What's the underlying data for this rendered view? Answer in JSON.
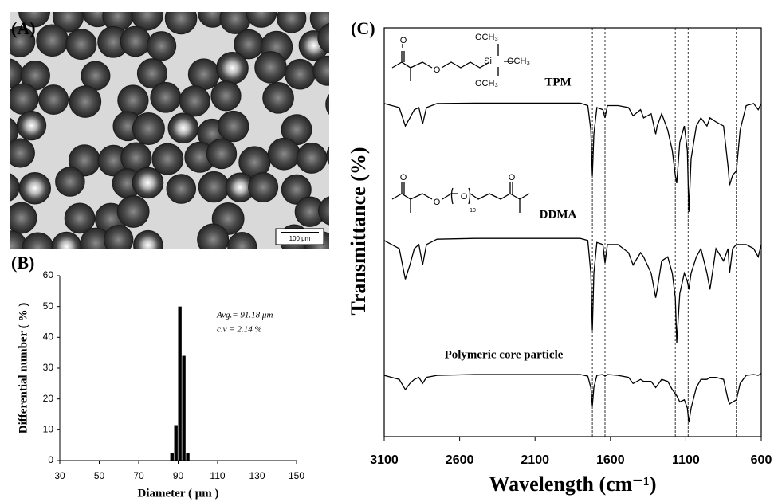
{
  "micrograph": {
    "panel_label": "(A)",
    "scale_bar_label": "100 μm"
  },
  "chart_data": [
    {
      "type": "histogram",
      "panel_label": "(B)",
      "x_label": "Diameter ( μm )",
      "y_label": "Differential number ( % )",
      "annotations": [
        "Avg.= 91.18 μm",
        "c.v = 2.14 %"
      ],
      "bins": [
        86,
        88,
        90,
        92,
        94,
        96
      ],
      "values": [
        2.5,
        11.5,
        50,
        34,
        2.5
      ],
      "color": "#000000",
      "xlim": [
        30,
        150
      ],
      "xticks": [
        30,
        50,
        70,
        90,
        110,
        130,
        150
      ],
      "ylim": [
        0,
        60
      ],
      "yticks": [
        0,
        10,
        20,
        30,
        40,
        50,
        60
      ]
    },
    {
      "type": "line",
      "panel_label": "(C)",
      "x_label": "Wavelength (cm⁻¹)",
      "y_label": "Transmittance (%)",
      "structure_labels": [
        "OCH₃",
        "OCH₃",
        "OCH₃",
        "Si",
        "O",
        "O",
        "O",
        "O",
        "O",
        "O",
        "10"
      ],
      "x": [
        3100,
        3000,
        2960,
        2930,
        2900,
        2870,
        2845,
        2820,
        2750,
        2500,
        1800,
        1750,
        1730,
        1720,
        1710,
        1690,
        1650,
        1636,
        1620,
        1550,
        1480,
        1450,
        1400,
        1380,
        1330,
        1300,
        1290,
        1260,
        1220,
        1190,
        1170,
        1160,
        1140,
        1110,
        1090,
        1080,
        1065,
        1030,
        1000,
        960,
        940,
        900,
        850,
        820,
        810,
        790,
        765,
        740,
        700,
        650,
        620,
        600
      ],
      "series": [
        {
          "name": "TPM",
          "color": "#000000",
          "values": [
            81.5,
            80.5,
            76,
            78,
            80,
            80.5,
            76.5,
            80.5,
            81.5,
            81.6,
            81.6,
            81,
            75,
            63.8,
            74,
            80.5,
            80,
            78,
            81,
            81,
            80.5,
            78.5,
            80,
            78,
            79,
            74,
            76,
            79,
            75,
            70,
            64,
            62,
            72,
            76,
            70,
            55,
            68,
            76,
            78,
            76,
            78,
            77,
            76,
            66,
            61.5,
            64,
            65,
            75,
            81,
            81.5,
            80,
            81.5
          ]
        },
        {
          "name": "DDMA",
          "color": "#000000",
          "values": [
            48,
            46,
            38.5,
            42,
            46,
            47,
            42,
            47,
            48.3,
            48.5,
            48.5,
            48,
            40,
            26,
            40,
            47.5,
            47,
            42.5,
            47,
            47,
            45,
            42,
            45,
            44,
            40,
            34,
            36,
            43,
            44,
            40,
            34,
            23,
            35,
            40,
            38,
            36,
            40,
            44,
            46,
            40,
            36,
            46,
            43,
            46,
            40,
            46,
            47,
            47,
            47,
            46,
            44,
            47
          ]
        },
        {
          "name": "Polymeric core particle",
          "color": "#000000",
          "values": [
            15,
            14,
            11.5,
            13,
            14,
            14.5,
            13,
            14.5,
            15,
            15.2,
            15.2,
            14.8,
            12,
            7.5,
            12,
            15,
            15.2,
            14.8,
            15.2,
            15,
            14.5,
            13,
            14,
            13.5,
            13.5,
            12,
            12.5,
            14,
            13.5,
            11.5,
            10.5,
            10,
            8.5,
            9,
            7,
            3.5,
            7,
            12,
            14,
            14,
            14.5,
            14.5,
            14,
            9,
            8,
            8.5,
            9,
            13,
            15,
            15.2,
            15,
            15.5
          ]
        }
      ],
      "reference_lines": [
        1720,
        1636,
        1170,
        1085,
        765
      ],
      "xlim": [
        3100,
        600
      ],
      "xticks": [
        3100,
        2600,
        2100,
        1600,
        1100,
        600
      ],
      "ylim": [
        0,
        100
      ]
    }
  ]
}
